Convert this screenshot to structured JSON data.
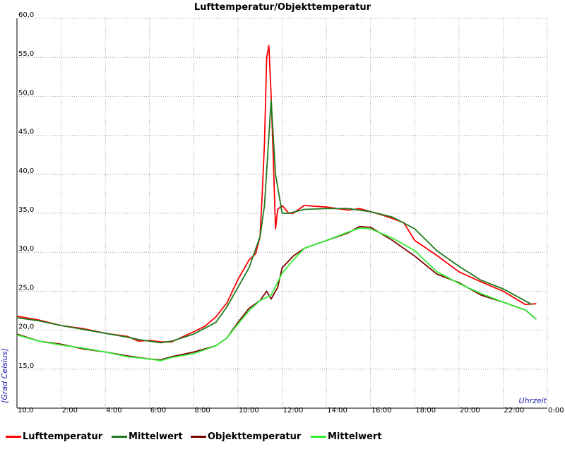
{
  "chart_data": {
    "type": "line",
    "title": "Lufttemperatur/Objekttemperatur",
    "xlabel": "Uhrzeit",
    "ylabel": "[Grad Celsius]",
    "xlim": [
      0,
      24
    ],
    "ylim": [
      10,
      60
    ],
    "x_tick_labels": [
      "10,0",
      "2:00",
      "4:00",
      "6:00",
      "8:00",
      "10:00",
      "12:00",
      "14:00",
      "16:00",
      "18:00",
      "20:00",
      "22:00",
      "0:00"
    ],
    "y_tick_labels": [
      "15,0",
      "20,0",
      "25,0",
      "30,0",
      "35,0",
      "40,0",
      "45,0",
      "50,0",
      "55,0",
      "60,0"
    ],
    "grid": true,
    "legend_position": "bottom",
    "series": [
      {
        "name": "Lufttemperatur",
        "color": "#ff0000",
        "x": [
          0,
          1,
          2,
          3,
          4,
          5,
          5.5,
          6,
          6.5,
          7,
          8,
          8.5,
          9,
          9.5,
          10,
          10.5,
          10.8,
          11,
          11.1,
          11.2,
          11.3,
          11.4,
          11.5,
          11.6,
          11.7,
          11.8,
          12,
          12.3,
          12.5,
          13,
          14,
          15,
          15.5,
          16,
          16.5,
          17,
          17.5,
          18,
          19,
          20,
          21,
          22,
          23,
          23.5
        ],
        "y": [
          21.8,
          21.3,
          20.6,
          20.2,
          19.6,
          19.2,
          18.6,
          18.7,
          18.5,
          18.5,
          19.8,
          20.5,
          21.7,
          23.5,
          26.5,
          29.0,
          29.8,
          32.0,
          37.5,
          44.0,
          55.0,
          56.5,
          50.0,
          42.0,
          33.0,
          35.5,
          36.0,
          35.0,
          35.0,
          36.0,
          35.8,
          35.4,
          35.6,
          35.2,
          34.8,
          34.3,
          33.8,
          31.5,
          29.6,
          27.5,
          26.2,
          25.0,
          23.3,
          23.4
        ]
      },
      {
        "name": "Mittelwert",
        "color": "#1e7a1e",
        "x": [
          0,
          1,
          2,
          3,
          4,
          5,
          5.5,
          6,
          6.5,
          7,
          8,
          9,
          9.5,
          10,
          10.5,
          11,
          11.2,
          11.5,
          11.7,
          12,
          12.3,
          13,
          14,
          15,
          16,
          17,
          18,
          19,
          20,
          21,
          22,
          23.3
        ],
        "y": [
          21.6,
          21.2,
          20.6,
          20.1,
          19.6,
          19.1,
          18.8,
          18.6,
          18.4,
          18.6,
          19.5,
          21.0,
          23.0,
          25.5,
          28.0,
          32.0,
          36.0,
          49.5,
          40.0,
          35.0,
          35.0,
          35.5,
          35.6,
          35.6,
          35.2,
          34.5,
          33.0,
          30.2,
          28.2,
          26.4,
          25.3,
          23.3
        ]
      },
      {
        "name": "Objekttemperatur",
        "color": "#7a0000",
        "x": [
          0,
          1,
          2,
          3,
          4,
          5,
          6,
          6.5,
          7,
          8,
          9,
          9.5,
          10,
          10.5,
          11,
          11.3,
          11.5,
          11.8,
          12,
          12.5,
          13,
          14,
          15,
          15.5,
          16,
          17,
          17.5,
          18,
          19,
          20,
          21,
          22,
          23,
          23.5
        ],
        "y": [
          19.5,
          18.6,
          18.2,
          17.6,
          17.2,
          16.7,
          16.3,
          16.2,
          16.6,
          17.2,
          18.0,
          19.0,
          21.0,
          22.8,
          23.8,
          25.0,
          24.0,
          25.5,
          28.0,
          29.5,
          30.5,
          31.5,
          32.5,
          33.3,
          33.2,
          31.5,
          30.5,
          29.5,
          27.2,
          26.1,
          24.5,
          23.6,
          22.6,
          21.4
        ]
      },
      {
        "name": "Mittelwert",
        "color": "#33ee33",
        "x": [
          0,
          1,
          2,
          3,
          4,
          5,
          6,
          6.5,
          7,
          8,
          9,
          9.5,
          10,
          10.5,
          11,
          11.5,
          12,
          12.5,
          13,
          14,
          15,
          15.5,
          16,
          17,
          18,
          19,
          20,
          21,
          22,
          23,
          23.5
        ],
        "y": [
          19.4,
          18.6,
          18.1,
          17.7,
          17.2,
          16.6,
          16.3,
          16.1,
          16.5,
          17.0,
          18.0,
          19.0,
          20.8,
          22.5,
          23.8,
          24.5,
          27.3,
          29.0,
          30.5,
          31.5,
          32.6,
          33.1,
          33.0,
          31.8,
          30.2,
          27.5,
          26.0,
          24.7,
          23.6,
          22.6,
          21.4
        ]
      }
    ]
  },
  "legend_items": [
    {
      "label": "Lufttemperatur",
      "color": "#ff0000"
    },
    {
      "label": "Mittelwert",
      "color": "#1e7a1e"
    },
    {
      "label": "Objekttemperatur",
      "color": "#7a0000"
    },
    {
      "label": "Mittelwert",
      "color": "#33ee33"
    }
  ]
}
